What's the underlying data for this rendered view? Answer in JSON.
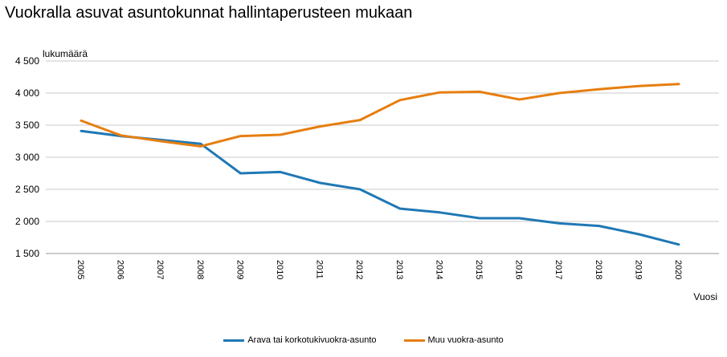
{
  "chart_data": {
    "type": "line",
    "title": "Vuokralla asuvat asuntokunnat hallintaperusteen mukaan",
    "ylabel": "lukumäärä",
    "xlabel": "Vuosi",
    "x": [
      "2005",
      "2006",
      "2007",
      "2008",
      "2009",
      "2010",
      "2011",
      "2012",
      "2013",
      "2014",
      "2015",
      "2016",
      "2017",
      "2018",
      "2019",
      "2020"
    ],
    "ylim": [
      1500,
      4500
    ],
    "yticks": [
      1500,
      2000,
      2500,
      3000,
      3500,
      4000,
      4500
    ],
    "ytick_labels": [
      "1 500",
      "2 000",
      "2 500",
      "3 000",
      "3 500",
      "4 000",
      "4 500"
    ],
    "grid": true,
    "legend_position": "bottom",
    "series": [
      {
        "name": "Arava tai korkotukivuokra-asunto",
        "color": "#1f78b4",
        "values": [
          3410,
          3330,
          3270,
          3210,
          2750,
          2770,
          2600,
          2500,
          2200,
          2140,
          2050,
          2050,
          1970,
          1930,
          1800,
          1640
        ]
      },
      {
        "name": "Muu vuokra-asunto",
        "color": "#e67e10",
        "values": [
          3570,
          3340,
          3250,
          3170,
          3330,
          3350,
          3480,
          3580,
          3890,
          4010,
          4020,
          3900,
          4000,
          4060,
          4110,
          4140
        ]
      }
    ]
  }
}
